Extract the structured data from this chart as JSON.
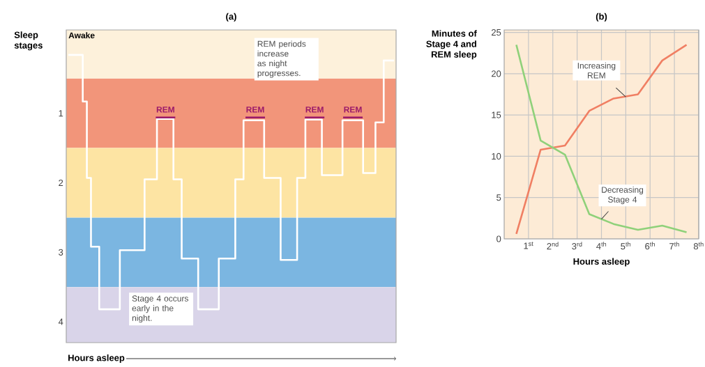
{
  "chart_data": [
    {
      "type": "step",
      "title": "(a)",
      "xlabel": "Hours asleep",
      "ylabel": "Sleep stages",
      "categories": [
        null,
        null,
        null,
        null,
        null,
        null,
        null,
        null,
        null,
        null,
        null,
        null,
        null,
        null,
        null,
        null,
        null,
        null,
        null,
        null,
        null,
        null,
        null,
        null,
        null,
        null,
        null,
        null,
        null,
        null,
        null,
        null,
        null,
        null,
        null,
        null,
        null,
        null,
        null,
        null,
        null,
        null,
        null,
        null,
        null,
        null,
        null,
        null,
        null,
        null,
        null,
        null,
        null,
        null,
        null,
        null,
        null,
        null,
        null,
        null,
        null,
        null,
        null,
        null,
        null,
        null,
        null,
        null,
        null,
        null,
        null,
        null,
        null,
        null,
        null,
        null,
        null,
        null,
        null,
        null
      ],
      "ylim": [
        4.3,
        -0.2
      ],
      "yticks": [
        1,
        2,
        3,
        4
      ],
      "tick_labels": "y",
      "bands": [
        {
          "axis": "y",
          "from": -0.2,
          "to": 0.5,
          "label": "Awake",
          "color": "#fdf1db"
        },
        {
          "axis": "y",
          "from": 0.5,
          "to": 1.5,
          "color": "#f2957a"
        },
        {
          "axis": "y",
          "from": 1.5,
          "to": 2.5,
          "color": "#fde4a3"
        },
        {
          "axis": "y",
          "from": 2.5,
          "to": 3.5,
          "color": "#7bb6e1"
        },
        {
          "axis": "y",
          "from": 3.5,
          "to": 4.3,
          "color": "#d9d4e9"
        }
      ],
      "series": [
        {
          "color": "#ffffff",
          "values": [
            0.16,
            0.16,
            0.16,
            0.16,
            0.83,
            1.93,
            2.92,
            2.92,
            3.82,
            3.82,
            3.82,
            3.82,
            3.82,
            2.97,
            2.97,
            2.97,
            2.97,
            2.97,
            2.97,
            1.95,
            1.95,
            1.95,
            1.08,
            1.08,
            1.08,
            1.08,
            1.95,
            1.95,
            3.09,
            3.09,
            3.09,
            3.09,
            3.82,
            3.82,
            3.82,
            3.82,
            3.82,
            3.09,
            3.09,
            3.09,
            3.09,
            1.95,
            1.95,
            1.1,
            1.1,
            1.1,
            1.1,
            1.1,
            1.93,
            1.93,
            1.93,
            1.93,
            3.11,
            3.11,
            3.11,
            3.11,
            1.93,
            1.93,
            1.09,
            1.09,
            1.09,
            1.09,
            1.89,
            1.89,
            1.89,
            1.89,
            1.89,
            1.1,
            1.1,
            1.1,
            1.1,
            1.1,
            1.86,
            1.86,
            1.86,
            1.13,
            1.13,
            0.24,
            0.24,
            0.24
          ]
        }
      ],
      "annotations": [
        "REM",
        "REM",
        "REM",
        "REM",
        "REM periods increase as night progresses.",
        "Stage 4 occurs early in the night."
      ]
    },
    {
      "type": "line",
      "title": "(b)",
      "xlabel": "Hours asleep",
      "ylabel": "Minutes of Stage 4 and REM sleep",
      "x": [
        0.5,
        1.5,
        2.5,
        3.5,
        4.5,
        5.5,
        6.5,
        7.5
      ],
      "xlim": [
        0,
        8
      ],
      "ylim": [
        0,
        25.3
      ],
      "yticks": [
        0,
        5,
        10,
        15,
        20,
        25
      ],
      "xticks": [
        {
          "value": 1,
          "label": "1$^{st}$"
        },
        {
          "value": 2,
          "label": "2$^{nd}$"
        },
        {
          "value": 3,
          "label": "3$^{rd}$"
        },
        {
          "value": 4,
          "label": "4$^{th}$"
        },
        {
          "value": 5,
          "label": "5$^{th}$"
        },
        {
          "value": 6,
          "label": "6$^{th}$"
        },
        {
          "value": 7,
          "label": "7$^{th}$"
        },
        {
          "value": 8,
          "label": "8$^{th}$"
        }
      ],
      "grid": true,
      "series": [
        {
          "color": "#f07f63",
          "values": [
            0.6,
            10.8,
            11.3,
            15.5,
            17.0,
            17.5,
            21.6,
            23.5
          ]
        },
        {
          "color": "#8fd17a",
          "values": [
            23.5,
            11.9,
            10.2,
            3.0,
            1.8,
            1.1,
            1.6,
            0.8
          ]
        }
      ],
      "annotations": [
        {
          "text": "Increasing REM",
          "x": 5,
          "y": 17.2
        },
        {
          "text": "Decreasing Stage 4",
          "x": 4,
          "y": 2.4
        }
      ]
    }
  ]
}
